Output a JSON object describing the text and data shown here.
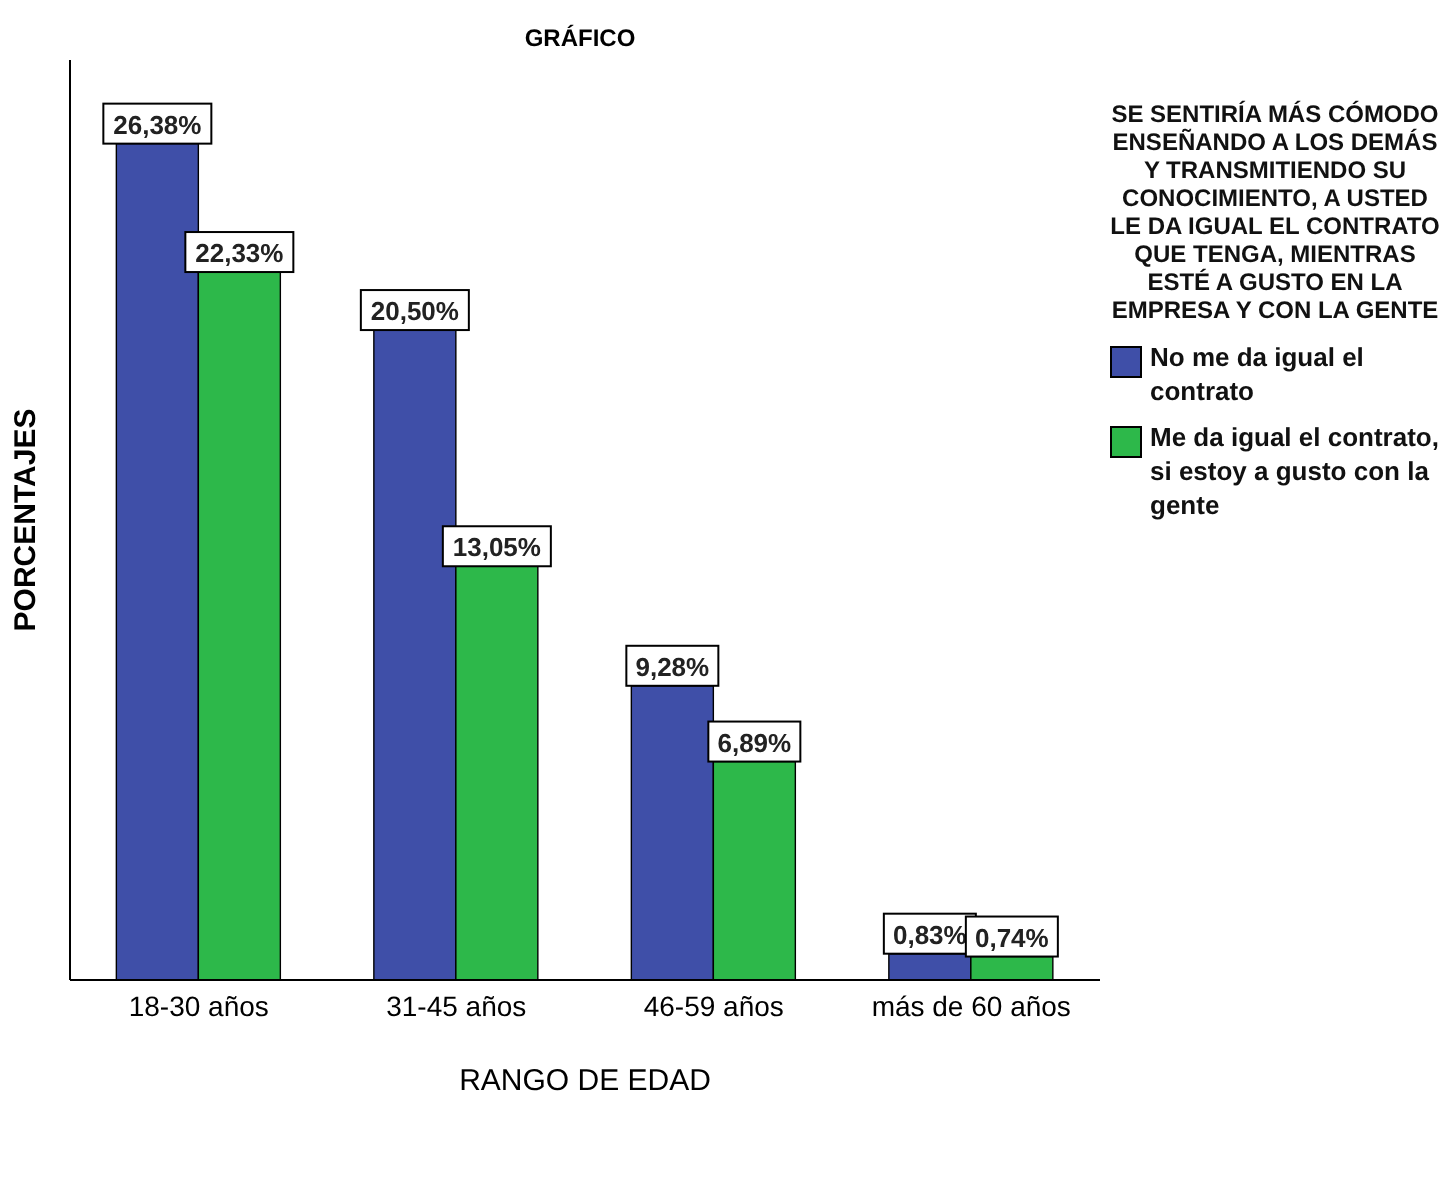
{
  "chart_data": {
    "type": "bar",
    "title": "GRÁFICO",
    "xlabel": "RANGO DE EDAD",
    "ylabel": "PORCENTAJES",
    "legend_title": "SE SENTIRÍA MÁS CÓMODO ENSEÑANDO A LOS DEMÁS Y TRANSMITIENDO SU CONOCIMIENTO, A USTED LE DA IGUAL EL CONTRATO QUE TENGA, MIENTRAS ESTÉ A GUSTO EN LA EMPRESA Y CON LA GENTE",
    "legend": "right",
    "grid": false,
    "categories": [
      "18-30 años",
      "31-45 años",
      "46-59 años",
      "más de 60 años"
    ],
    "series": [
      {
        "name": "No me da igual el contrato",
        "color": "#3f4fa8",
        "values": [
          26.38,
          20.5,
          9.28,
          0.83
        ],
        "value_labels": [
          "26,38%",
          "20,50%",
          "9,28%",
          "0,83%"
        ]
      },
      {
        "name": "Me da igual el contrato, si estoy a gusto con la gente",
        "color": "#2db84a",
        "values": [
          22.33,
          13.05,
          6.89,
          0.74
        ],
        "value_labels": [
          "22,33%",
          "13,05%",
          "6,89%",
          "0,74%"
        ]
      }
    ]
  }
}
